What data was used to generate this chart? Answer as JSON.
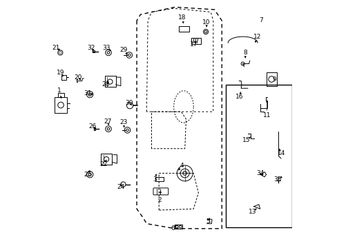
{
  "bg_color": "#ffffff",
  "line_color": "#000000",
  "part_numbers": [
    1,
    2,
    3,
    4,
    5,
    6,
    7,
    8,
    9,
    10,
    11,
    12,
    13,
    14,
    15,
    16,
    17,
    18,
    19,
    20,
    21,
    22,
    23,
    24,
    25,
    26,
    27,
    28,
    29,
    30,
    31,
    32,
    33,
    34,
    35
  ],
  "arrow_config": {
    "1": {
      "lbl": [
        0.055,
        0.635
      ],
      "comp": [
        0.067,
        0.595
      ]
    },
    "2": {
      "lbl": [
        0.463,
        0.192
      ],
      "comp": [
        0.468,
        0.237
      ]
    },
    "3": {
      "lbl": [
        0.443,
        0.275
      ],
      "comp": [
        0.45,
        0.298
      ]
    },
    "4": {
      "lbl": [
        0.552,
        0.33
      ],
      "comp": [
        0.535,
        0.305
      ]
    },
    "5": {
      "lbl": [
        0.66,
        0.105
      ],
      "comp": [
        0.666,
        0.118
      ]
    },
    "6": {
      "lbl": [
        0.516,
        0.075
      ],
      "comp": [
        0.53,
        0.088
      ]
    },
    "7": {
      "lbl": [
        0.875,
        0.92
      ],
      "comp": [
        0.875,
        0.92
      ]
    },
    "8": {
      "lbl": [
        0.81,
        0.79
      ],
      "comp": [
        0.81,
        0.759
      ]
    },
    "9": {
      "lbl": [
        0.928,
        0.68
      ],
      "comp": [
        0.916,
        0.685
      ]
    },
    "10": {
      "lbl": [
        0.653,
        0.912
      ],
      "comp": [
        0.653,
        0.893
      ]
    },
    "11": {
      "lbl": [
        0.898,
        0.535
      ],
      "comp": [
        0.898,
        0.605
      ]
    },
    "12": {
      "lbl": [
        0.86,
        0.855
      ],
      "comp": [
        0.85,
        0.83
      ]
    },
    "13": {
      "lbl": [
        0.838,
        0.142
      ],
      "comp": [
        0.862,
        0.162
      ]
    },
    "14": {
      "lbl": [
        0.956,
        0.38
      ],
      "comp": [
        0.947,
        0.4
      ]
    },
    "15": {
      "lbl": [
        0.815,
        0.435
      ],
      "comp": [
        0.832,
        0.448
      ]
    },
    "16": {
      "lbl": [
        0.785,
        0.61
      ],
      "comp": [
        0.795,
        0.638
      ]
    },
    "17": {
      "lbl": [
        0.6,
        0.822
      ],
      "comp": [
        0.61,
        0.838
      ]
    },
    "18": {
      "lbl": [
        0.553,
        0.932
      ],
      "comp": [
        0.562,
        0.9
      ]
    },
    "19": {
      "lbl": [
        0.062,
        0.708
      ],
      "comp": [
        0.072,
        0.692
      ]
    },
    "20": {
      "lbl": [
        0.133,
        0.69
      ],
      "comp": [
        0.143,
        0.678
      ]
    },
    "21": {
      "lbl": [
        0.043,
        0.808
      ],
      "comp": [
        0.06,
        0.8
      ]
    },
    "22": {
      "lbl": [
        0.235,
        0.335
      ],
      "comp": [
        0.248,
        0.355
      ]
    },
    "23": {
      "lbl": [
        0.316,
        0.508
      ],
      "comp": [
        0.32,
        0.477
      ]
    },
    "24": {
      "lbl": [
        0.305,
        0.245
      ],
      "comp": [
        0.308,
        0.258
      ]
    },
    "25": {
      "lbl": [
        0.172,
        0.295
      ],
      "comp": [
        0.18,
        0.313
      ]
    },
    "26": {
      "lbl": [
        0.192,
        0.49
      ],
      "comp": [
        0.202,
        0.48
      ]
    },
    "27": {
      "lbl": [
        0.252,
        0.51
      ],
      "comp": [
        0.257,
        0.494
      ]
    },
    "28": {
      "lbl": [
        0.243,
        0.66
      ],
      "comp": [
        0.257,
        0.673
      ]
    },
    "29": {
      "lbl": [
        0.318,
        0.8
      ],
      "comp": [
        0.332,
        0.782
      ]
    },
    "30": {
      "lbl": [
        0.34,
        0.585
      ],
      "comp": [
        0.35,
        0.576
      ]
    },
    "31": {
      "lbl": [
        0.172,
        0.625
      ],
      "comp": [
        0.182,
        0.623
      ]
    },
    "32": {
      "lbl": [
        0.185,
        0.808
      ],
      "comp": [
        0.197,
        0.795
      ]
    },
    "33": {
      "lbl": [
        0.248,
        0.81
      ],
      "comp": [
        0.256,
        0.804
      ]
    },
    "34": {
      "lbl": [
        0.872,
        0.3
      ],
      "comp": [
        0.882,
        0.291
      ]
    },
    "35": {
      "lbl": [
        0.942,
        0.275
      ],
      "comp": [
        0.95,
        0.28
      ]
    }
  }
}
